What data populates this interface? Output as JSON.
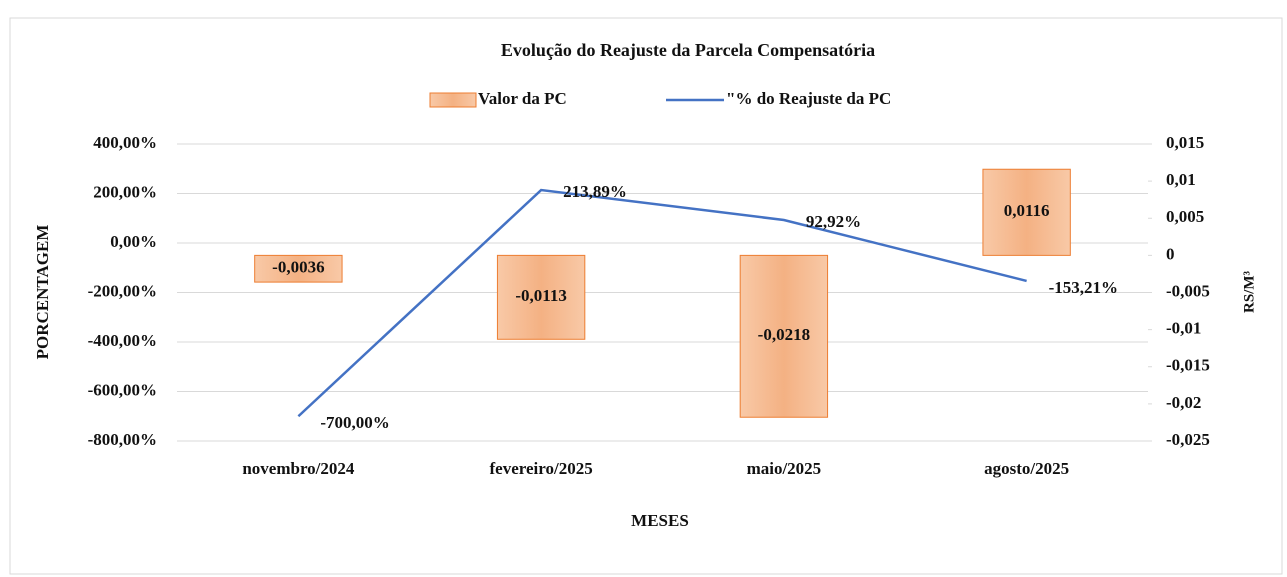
{
  "chart_data": {
    "type": "combo",
    "title": "Evolução do Reajuste da Parcela Compensatória",
    "x_label": "MESES",
    "y_label": "PORCENTAGEM",
    "y2_label": "RS/M³",
    "categories": [
      "novembro/2024",
      "fevereiro/2025",
      "maio/2025",
      "agosto/2025"
    ],
    "series": [
      {
        "name": "Valor da PC",
        "type": "bar",
        "axis": "y2",
        "color": "#f4b183",
        "edge": "#ed7d31",
        "values": [
          -0.0036,
          -0.0113,
          -0.0218,
          0.0116
        ],
        "value_labels": [
          "-0,0036",
          "-0,0113",
          "-0,0218",
          "0,0116"
        ]
      },
      {
        "name": "\"% do Reajuste da PC",
        "type": "line",
        "color": "#4472c4",
        "values": [
          -700,
          213.89,
          92.92,
          -153.21
        ],
        "value_labels": [
          "-700,00%",
          "213,89%",
          "92,92%",
          "-153,21%"
        ]
      }
    ],
    "ylim": [
      -800,
      400
    ],
    "yticks": [
      {
        "value": 400,
        "label": "400,00%"
      },
      {
        "value": 200,
        "label": "200,00%"
      },
      {
        "value": 0,
        "label": "0,00%"
      },
      {
        "value": -200,
        "label": "-200,00%"
      },
      {
        "value": -400,
        "label": "-400,00%"
      },
      {
        "value": -600,
        "label": "-600,00%"
      },
      {
        "value": -800,
        "label": "-800,00%"
      }
    ],
    "y2lim": [
      -0.025,
      0.015
    ],
    "y2ticks": [
      {
        "value": 0.015,
        "label": "0,015"
      },
      {
        "value": 0.01,
        "label": "0,01"
      },
      {
        "value": 0.005,
        "label": "0,005"
      },
      0,
      {
        "value": -0.005,
        "label": "-0,005"
      },
      {
        "value": -0.01,
        "label": "-0,01"
      },
      {
        "value": -0.015,
        "label": "-0,015"
      },
      {
        "value": -0.02,
        "label": "-0,02"
      },
      {
        "value": -0.025,
        "label": "-0,025"
      }
    ],
    "grid": true
  }
}
